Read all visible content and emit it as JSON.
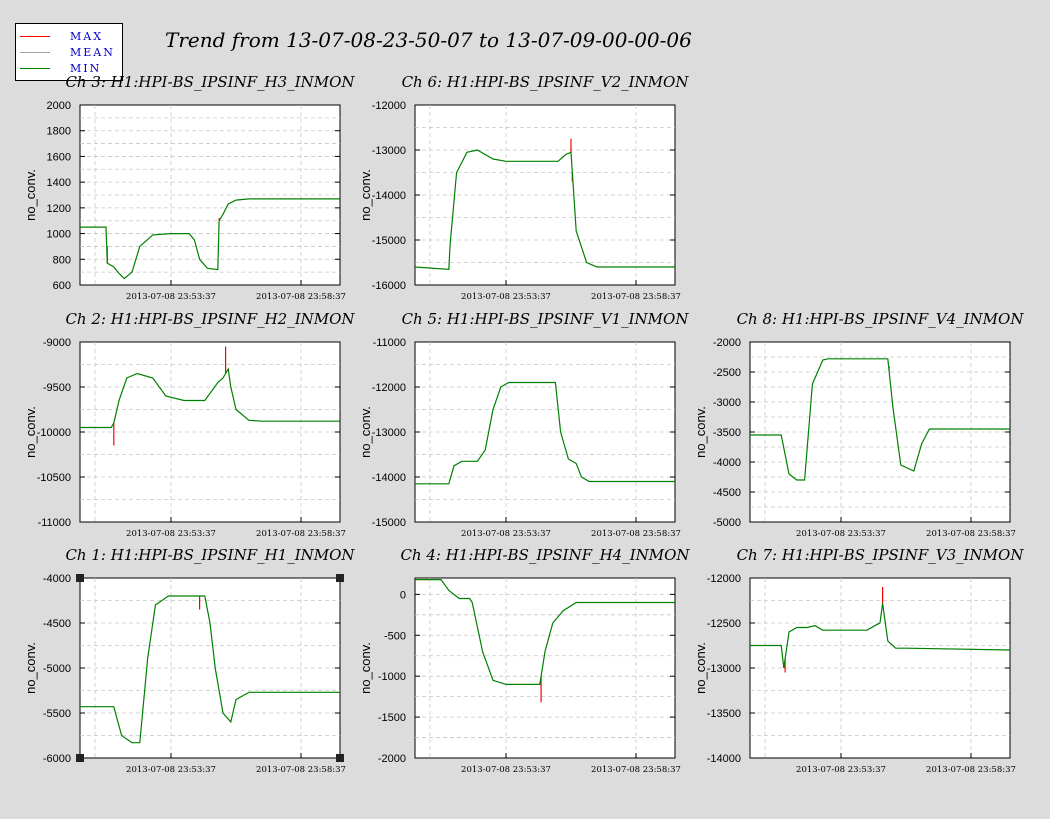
{
  "title": "Trend from 13-07-08-23-50-07 to 13-07-09-00-00-06",
  "legend": [
    {
      "label": "MAX",
      "color": "#ff0000"
    },
    {
      "label": "MEAN",
      "color": "#a0a0a0"
    },
    {
      "label": "MIN",
      "color": "#008000"
    }
  ],
  "chart_data": [
    {
      "type": "line",
      "title": "Ch 3: H1:HPI-BS_IPSINF_H3_INMON",
      "ylabel": "no_conv.",
      "ylim": [
        600,
        2000
      ],
      "yticks": [
        2000,
        1800,
        1600,
        1400,
        1200,
        1000,
        800,
        600
      ],
      "xlim": [
        0,
        10
      ],
      "xticks": [
        {
          "x": 3.5,
          "label": "2013-07-08 23:53:37"
        },
        {
          "x": 8.5,
          "label": "2013-07-08 23:58:37"
        }
      ],
      "x": [
        0,
        1.0,
        1.05,
        1.3,
        1.5,
        1.7,
        2.0,
        2.3,
        2.8,
        3.5,
        4.2,
        4.4,
        4.6,
        4.9,
        5.3,
        5.35,
        5.5,
        5.7,
        6.0,
        6.5,
        7.0,
        10
      ],
      "series": [
        {
          "name": "MIN",
          "values": [
            1050,
            1050,
            770,
            740,
            690,
            650,
            700,
            900,
            990,
            1000,
            1000,
            950,
            800,
            730,
            720,
            1100,
            1150,
            1230,
            1260,
            1270,
            1270,
            1270
          ]
        }
      ],
      "spikes": [
        {
          "x": 1.05,
          "y": 900
        },
        {
          "x": 5.35,
          "y": 1120
        }
      ]
    },
    {
      "type": "line",
      "title": "Ch 6: H1:HPI-BS_IPSINF_V2_INMON",
      "ylabel": "no_conv.",
      "ylim": [
        -16000,
        -12000
      ],
      "yticks": [
        -12000,
        -13000,
        -14000,
        -15000,
        -16000
      ],
      "xlim": [
        0,
        10
      ],
      "xticks": [
        {
          "x": 3.5,
          "label": "2013-07-08 23:53:37"
        },
        {
          "x": 8.5,
          "label": "2013-07-08 23:58:37"
        }
      ],
      "x": [
        0,
        1.3,
        1.35,
        1.6,
        2.0,
        2.4,
        3.0,
        3.5,
        5.5,
        5.8,
        6.0,
        6.2,
        6.6,
        7.0,
        10
      ],
      "series": [
        {
          "name": "MIN",
          "values": [
            -15600,
            -15650,
            -15100,
            -13500,
            -13050,
            -13000,
            -13200,
            -13250,
            -13250,
            -13100,
            -13050,
            -14800,
            -15500,
            -15600,
            -15600
          ]
        }
      ],
      "spikes": [
        {
          "x": 6.0,
          "y": -12750
        },
        {
          "x": 6.05,
          "y": -13700
        }
      ]
    },
    {
      "type": "line",
      "title": "Ch 2: H1:HPI-BS_IPSINF_H2_INMON",
      "ylabel": "no_conv.",
      "ylim": [
        -11000,
        -9000
      ],
      "yticks": [
        -9000,
        -9500,
        -10000,
        -10500,
        -11000
      ],
      "xlim": [
        0,
        10
      ],
      "xticks": [
        {
          "x": 3.5,
          "label": "2013-07-08 23:53:37"
        },
        {
          "x": 8.5,
          "label": "2013-07-08 23:58:37"
        }
      ],
      "x": [
        0,
        1.2,
        1.3,
        1.5,
        1.8,
        2.2,
        2.8,
        3.3,
        4.0,
        4.8,
        5.3,
        5.5,
        5.7,
        5.8,
        6.0,
        6.5,
        7.0,
        10
      ],
      "series": [
        {
          "name": "MIN",
          "values": [
            -9950,
            -9950,
            -9900,
            -9650,
            -9400,
            -9350,
            -9400,
            -9600,
            -9650,
            -9650,
            -9450,
            -9400,
            -9300,
            -9500,
            -9750,
            -9870,
            -9880,
            -9880
          ]
        }
      ],
      "spikes": [
        {
          "x": 1.3,
          "y": -10150
        },
        {
          "x": 5.6,
          "y": -9050
        }
      ]
    },
    {
      "type": "line",
      "title": "Ch 5: H1:HPI-BS_IPSINF_V1_INMON",
      "ylabel": "no_conv.",
      "ylim": [
        -15000,
        -11000
      ],
      "yticks": [
        -11000,
        -12000,
        -13000,
        -14000,
        -15000
      ],
      "xlim": [
        0,
        10
      ],
      "xticks": [
        {
          "x": 3.5,
          "label": "2013-07-08 23:53:37"
        },
        {
          "x": 8.5,
          "label": "2013-07-08 23:58:37"
        }
      ],
      "x": [
        0,
        1.3,
        1.5,
        1.8,
        2.4,
        2.7,
        3.0,
        3.3,
        3.6,
        4.0,
        5.4,
        5.6,
        5.9,
        6.2,
        6.4,
        6.7,
        7.0,
        10
      ],
      "series": [
        {
          "name": "MIN",
          "values": [
            -14150,
            -14150,
            -13750,
            -13650,
            -13650,
            -13400,
            -12500,
            -12000,
            -11900,
            -11900,
            -11900,
            -13000,
            -13600,
            -13700,
            -14000,
            -14100,
            -14100,
            -14100
          ]
        }
      ],
      "spikes": []
    },
    {
      "type": "line",
      "title": "Ch 8: H1:HPI-BS_IPSINF_V4_INMON",
      "ylabel": "no_conv.",
      "ylim": [
        -5000,
        -2000
      ],
      "yticks": [
        -2000,
        -2500,
        -3000,
        -3500,
        -4000,
        -4500,
        -5000
      ],
      "xlim": [
        0,
        10
      ],
      "xticks": [
        {
          "x": 3.5,
          "label": "2013-07-08 23:53:37"
        },
        {
          "x": 8.5,
          "label": "2013-07-08 23:58:37"
        }
      ],
      "x": [
        0,
        1.2,
        1.5,
        1.8,
        2.1,
        2.4,
        2.8,
        3.0,
        3.3,
        5.3,
        5.5,
        5.8,
        6.3,
        6.6,
        6.9,
        7.3,
        10
      ],
      "series": [
        {
          "name": "MIN",
          "values": [
            -3550,
            -3550,
            -4200,
            -4300,
            -4300,
            -2700,
            -2300,
            -2280,
            -2280,
            -2280,
            -3100,
            -4050,
            -4150,
            -3700,
            -3450,
            -3450,
            -3450
          ]
        }
      ],
      "spikes": [
        {
          "x": 5.35,
          "y": -2400
        }
      ]
    },
    {
      "type": "line",
      "title": "Ch 1: H1:HPI-BS_IPSINF_H1_INMON",
      "ylabel": "no_conv.",
      "ylim": [
        -6000,
        -4000
      ],
      "yticks": [
        -4000,
        -4500,
        -5000,
        -5500,
        -6000
      ],
      "xlim": [
        0,
        10
      ],
      "xticks": [
        {
          "x": 3.5,
          "label": "2013-07-08 23:53:37"
        },
        {
          "x": 8.5,
          "label": "2013-07-08 23:58:37"
        }
      ],
      "x": [
        0,
        1.3,
        1.6,
        2.0,
        2.3,
        2.6,
        2.9,
        3.4,
        4.8,
        5.0,
        5.2,
        5.5,
        5.8,
        6.0,
        6.5,
        7.0,
        10
      ],
      "series": [
        {
          "name": "MIN",
          "values": [
            -5430,
            -5430,
            -5750,
            -5830,
            -5830,
            -4900,
            -4300,
            -4200,
            -4200,
            -4500,
            -5000,
            -5500,
            -5600,
            -5350,
            -5270,
            -5270,
            -5270
          ]
        }
      ],
      "spikes": [
        {
          "x": 4.6,
          "y": -4350
        }
      ]
    },
    {
      "type": "line",
      "title": "Ch 4: H1:HPI-BS_IPSINF_H4_INMON",
      "ylabel": "no_conv.",
      "ylim": [
        -2000,
        200
      ],
      "yticks": [
        0,
        -500,
        -1000,
        -1500,
        -2000
      ],
      "xlim": [
        0,
        10
      ],
      "xticks": [
        {
          "x": 3.5,
          "label": "2013-07-08 23:53:37"
        },
        {
          "x": 8.5,
          "label": "2013-07-08 23:58:37"
        }
      ],
      "x": [
        0,
        1.0,
        1.3,
        1.7,
        2.1,
        2.2,
        2.6,
        3.0,
        3.5,
        4.0,
        4.8,
        5.0,
        5.3,
        5.7,
        6.2,
        7.0,
        10
      ],
      "series": [
        {
          "name": "MIN",
          "values": [
            180,
            180,
            50,
            -50,
            -50,
            -100,
            -700,
            -1050,
            -1100,
            -1100,
            -1100,
            -700,
            -350,
            -200,
            -100,
            -100,
            -100
          ]
        }
      ],
      "spikes": [
        {
          "x": 4.85,
          "y": -1320
        }
      ]
    },
    {
      "type": "line",
      "title": "Ch 7: H1:HPI-BS_IPSINF_V3_INMON",
      "ylabel": "no_conv.",
      "ylim": [
        -14000,
        -12000
      ],
      "yticks": [
        -12000,
        -12500,
        -13000,
        -13500,
        -14000
      ],
      "xlim": [
        0,
        10
      ],
      "xticks": [
        {
          "x": 3.5,
          "label": "2013-07-08 23:53:37"
        },
        {
          "x": 8.5,
          "label": "2013-07-08 23:58:37"
        }
      ],
      "x": [
        0,
        1.2,
        1.3,
        1.5,
        1.8,
        2.2,
        2.5,
        2.8,
        4.5,
        4.8,
        5.0,
        5.1,
        5.3,
        5.6,
        6.0,
        10
      ],
      "series": [
        {
          "name": "MIN",
          "values": [
            -12750,
            -12750,
            -13000,
            -12600,
            -12550,
            -12550,
            -12530,
            -12580,
            -12580,
            -12530,
            -12500,
            -12280,
            -12700,
            -12780,
            -12780,
            -12800
          ]
        }
      ],
      "spikes": [
        {
          "x": 5.1,
          "y": -12100
        },
        {
          "x": 1.35,
          "y": -13050
        }
      ]
    }
  ]
}
